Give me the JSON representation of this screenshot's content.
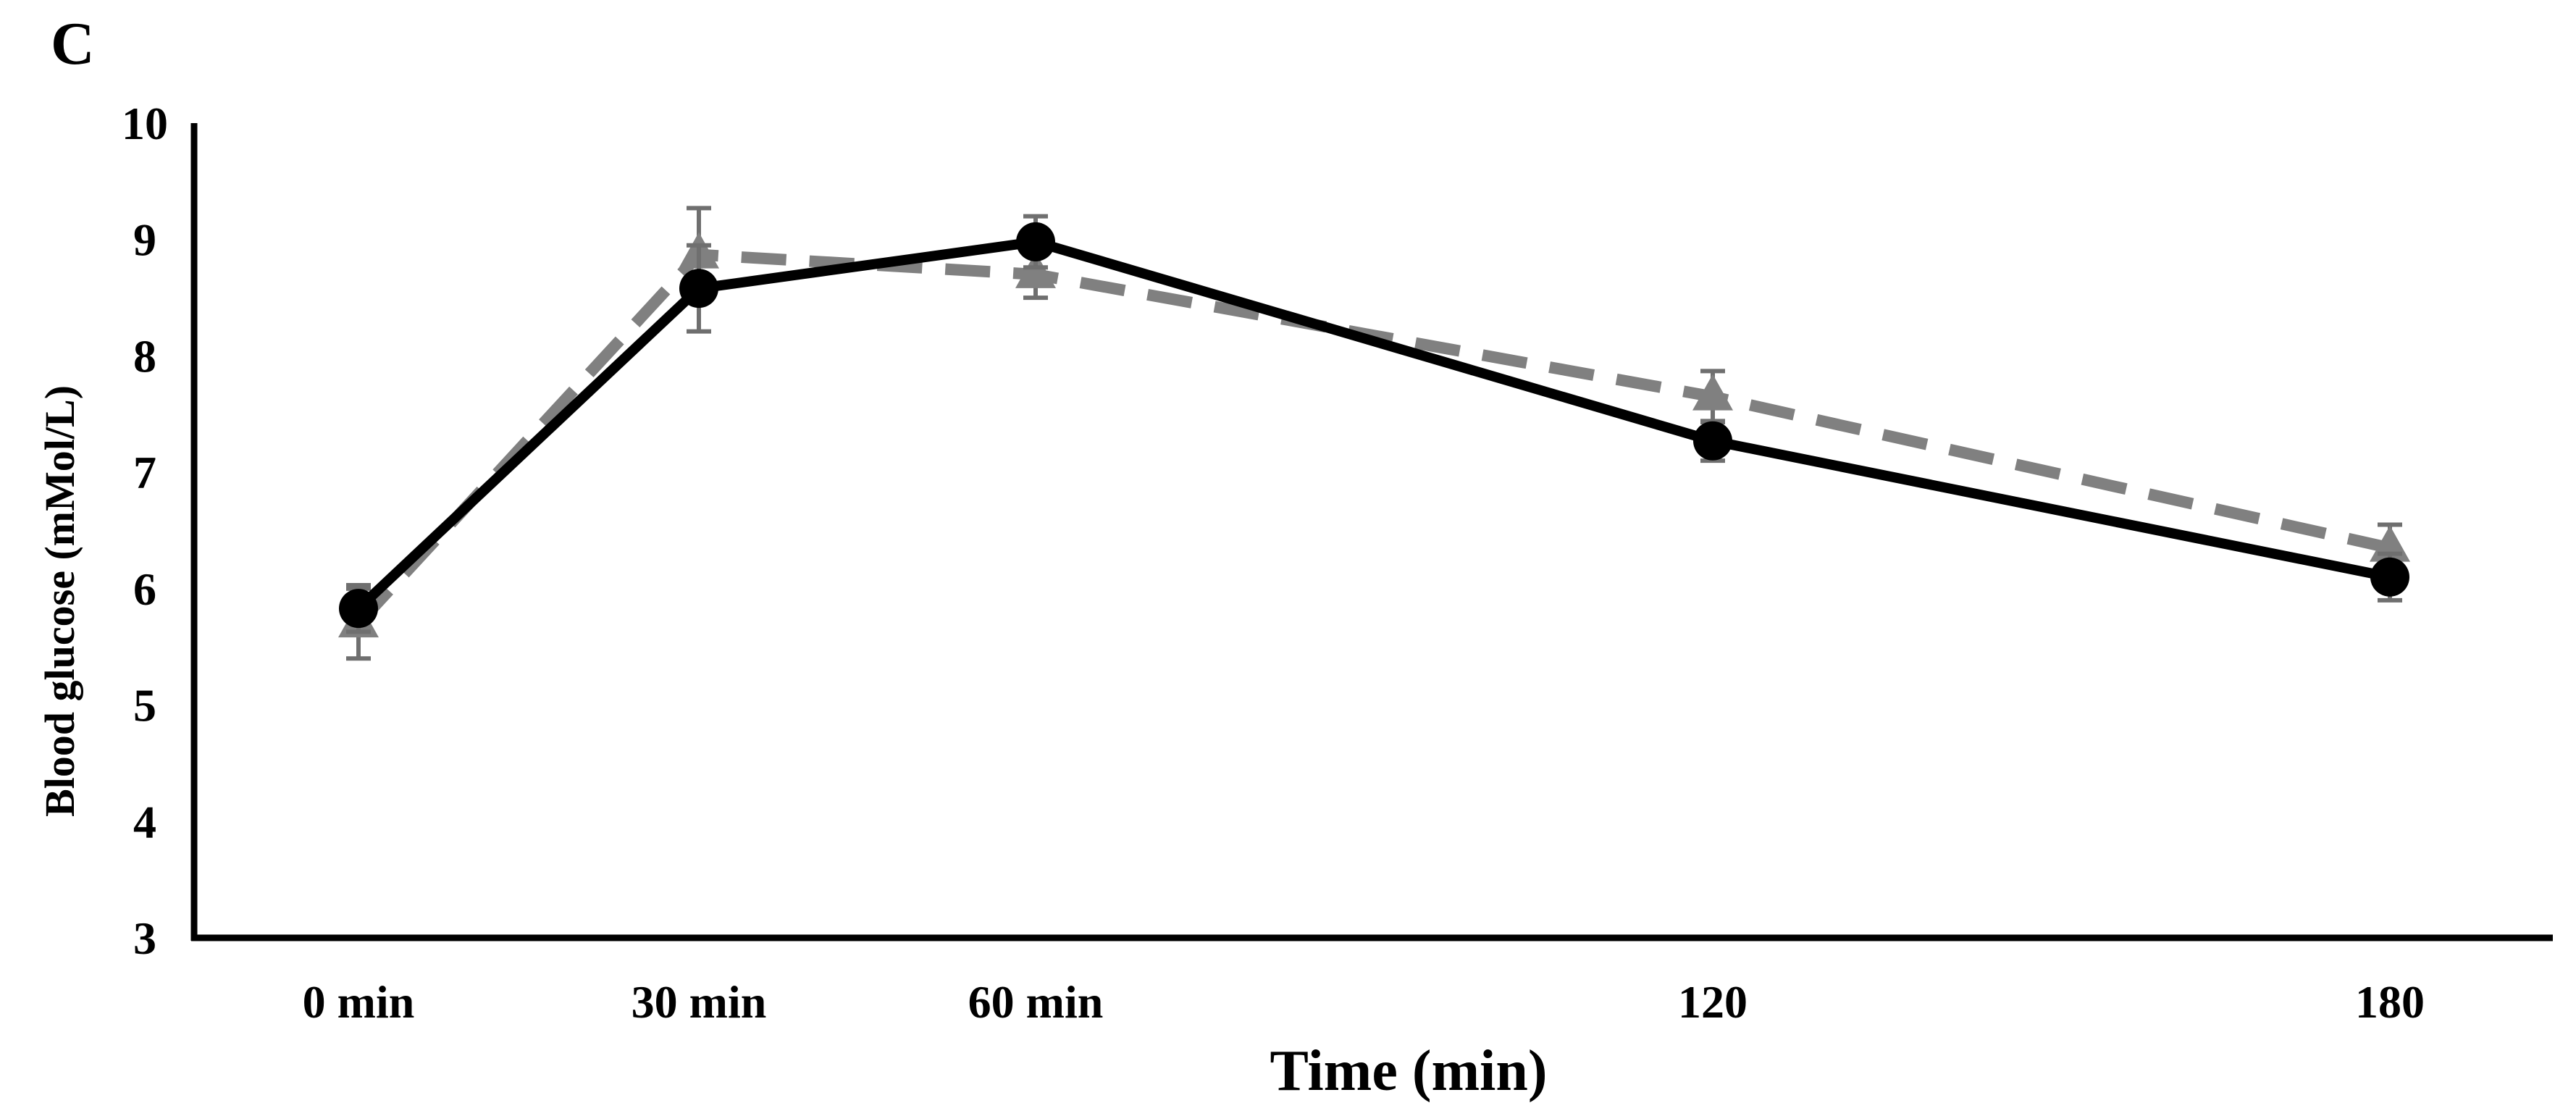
{
  "panel_label": "C",
  "chart_data": {
    "type": "line",
    "title": "",
    "xlabel": "Time (min)",
    "ylabel": "Blood glucose (mMol/L)",
    "ylim": [
      3,
      10
    ],
    "yticks": [
      "3",
      "4",
      "5",
      "6",
      "7",
      "8",
      "9",
      "10"
    ],
    "x": [
      0,
      30,
      60,
      120,
      180
    ],
    "categories": [
      "0 min",
      "30 min",
      "60 min",
      "120",
      "180"
    ],
    "grid": false,
    "legend": "none",
    "series": [
      {
        "name": "Series 1 (solid, circles)",
        "color": "#000000",
        "line_style": "solid",
        "marker": "circle",
        "values": [
          5.83,
          8.58,
          8.98,
          7.27,
          6.1
        ],
        "error": [
          0.2,
          0.37,
          0.22,
          0.17,
          0.2
        ]
      },
      {
        "name": "Series 2 (dashed, triangles)",
        "color": "#808080",
        "line_style": "dashed",
        "marker": "triangle",
        "values": [
          5.7,
          8.87,
          8.7,
          7.65,
          6.35
        ],
        "error": [
          0.3,
          0.4,
          0.2,
          0.22,
          0.2
        ]
      }
    ]
  }
}
